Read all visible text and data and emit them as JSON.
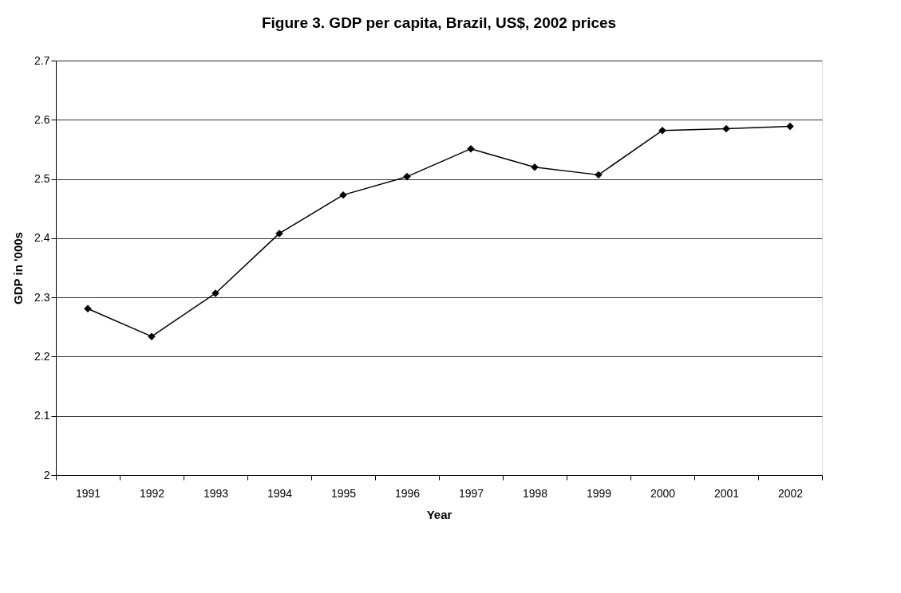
{
  "chart_data": {
    "type": "line",
    "title": "Figure 3.  GDP per capita, Brazil, US$, 2002 prices",
    "xlabel": "Year",
    "ylabel": "GDP in '000s",
    "categories": [
      "1991",
      "1992",
      "1993",
      "1994",
      "1995",
      "1996",
      "1997",
      "1998",
      "1999",
      "2000",
      "2001",
      "2002"
    ],
    "series": [
      {
        "color": "#000000",
        "values": [
          2.281,
          2.234,
          2.307,
          2.408,
          2.473,
          2.504,
          2.551,
          2.52,
          2.507,
          2.582,
          2.585,
          2.589
        ]
      }
    ],
    "ylim": [
      2,
      2.7
    ],
    "yticks": [
      2,
      2.1,
      2.2,
      2.3,
      2.4,
      2.5,
      2.6,
      2.7
    ],
    "grid": "y",
    "marker": "diamond",
    "line_style": "solid"
  }
}
